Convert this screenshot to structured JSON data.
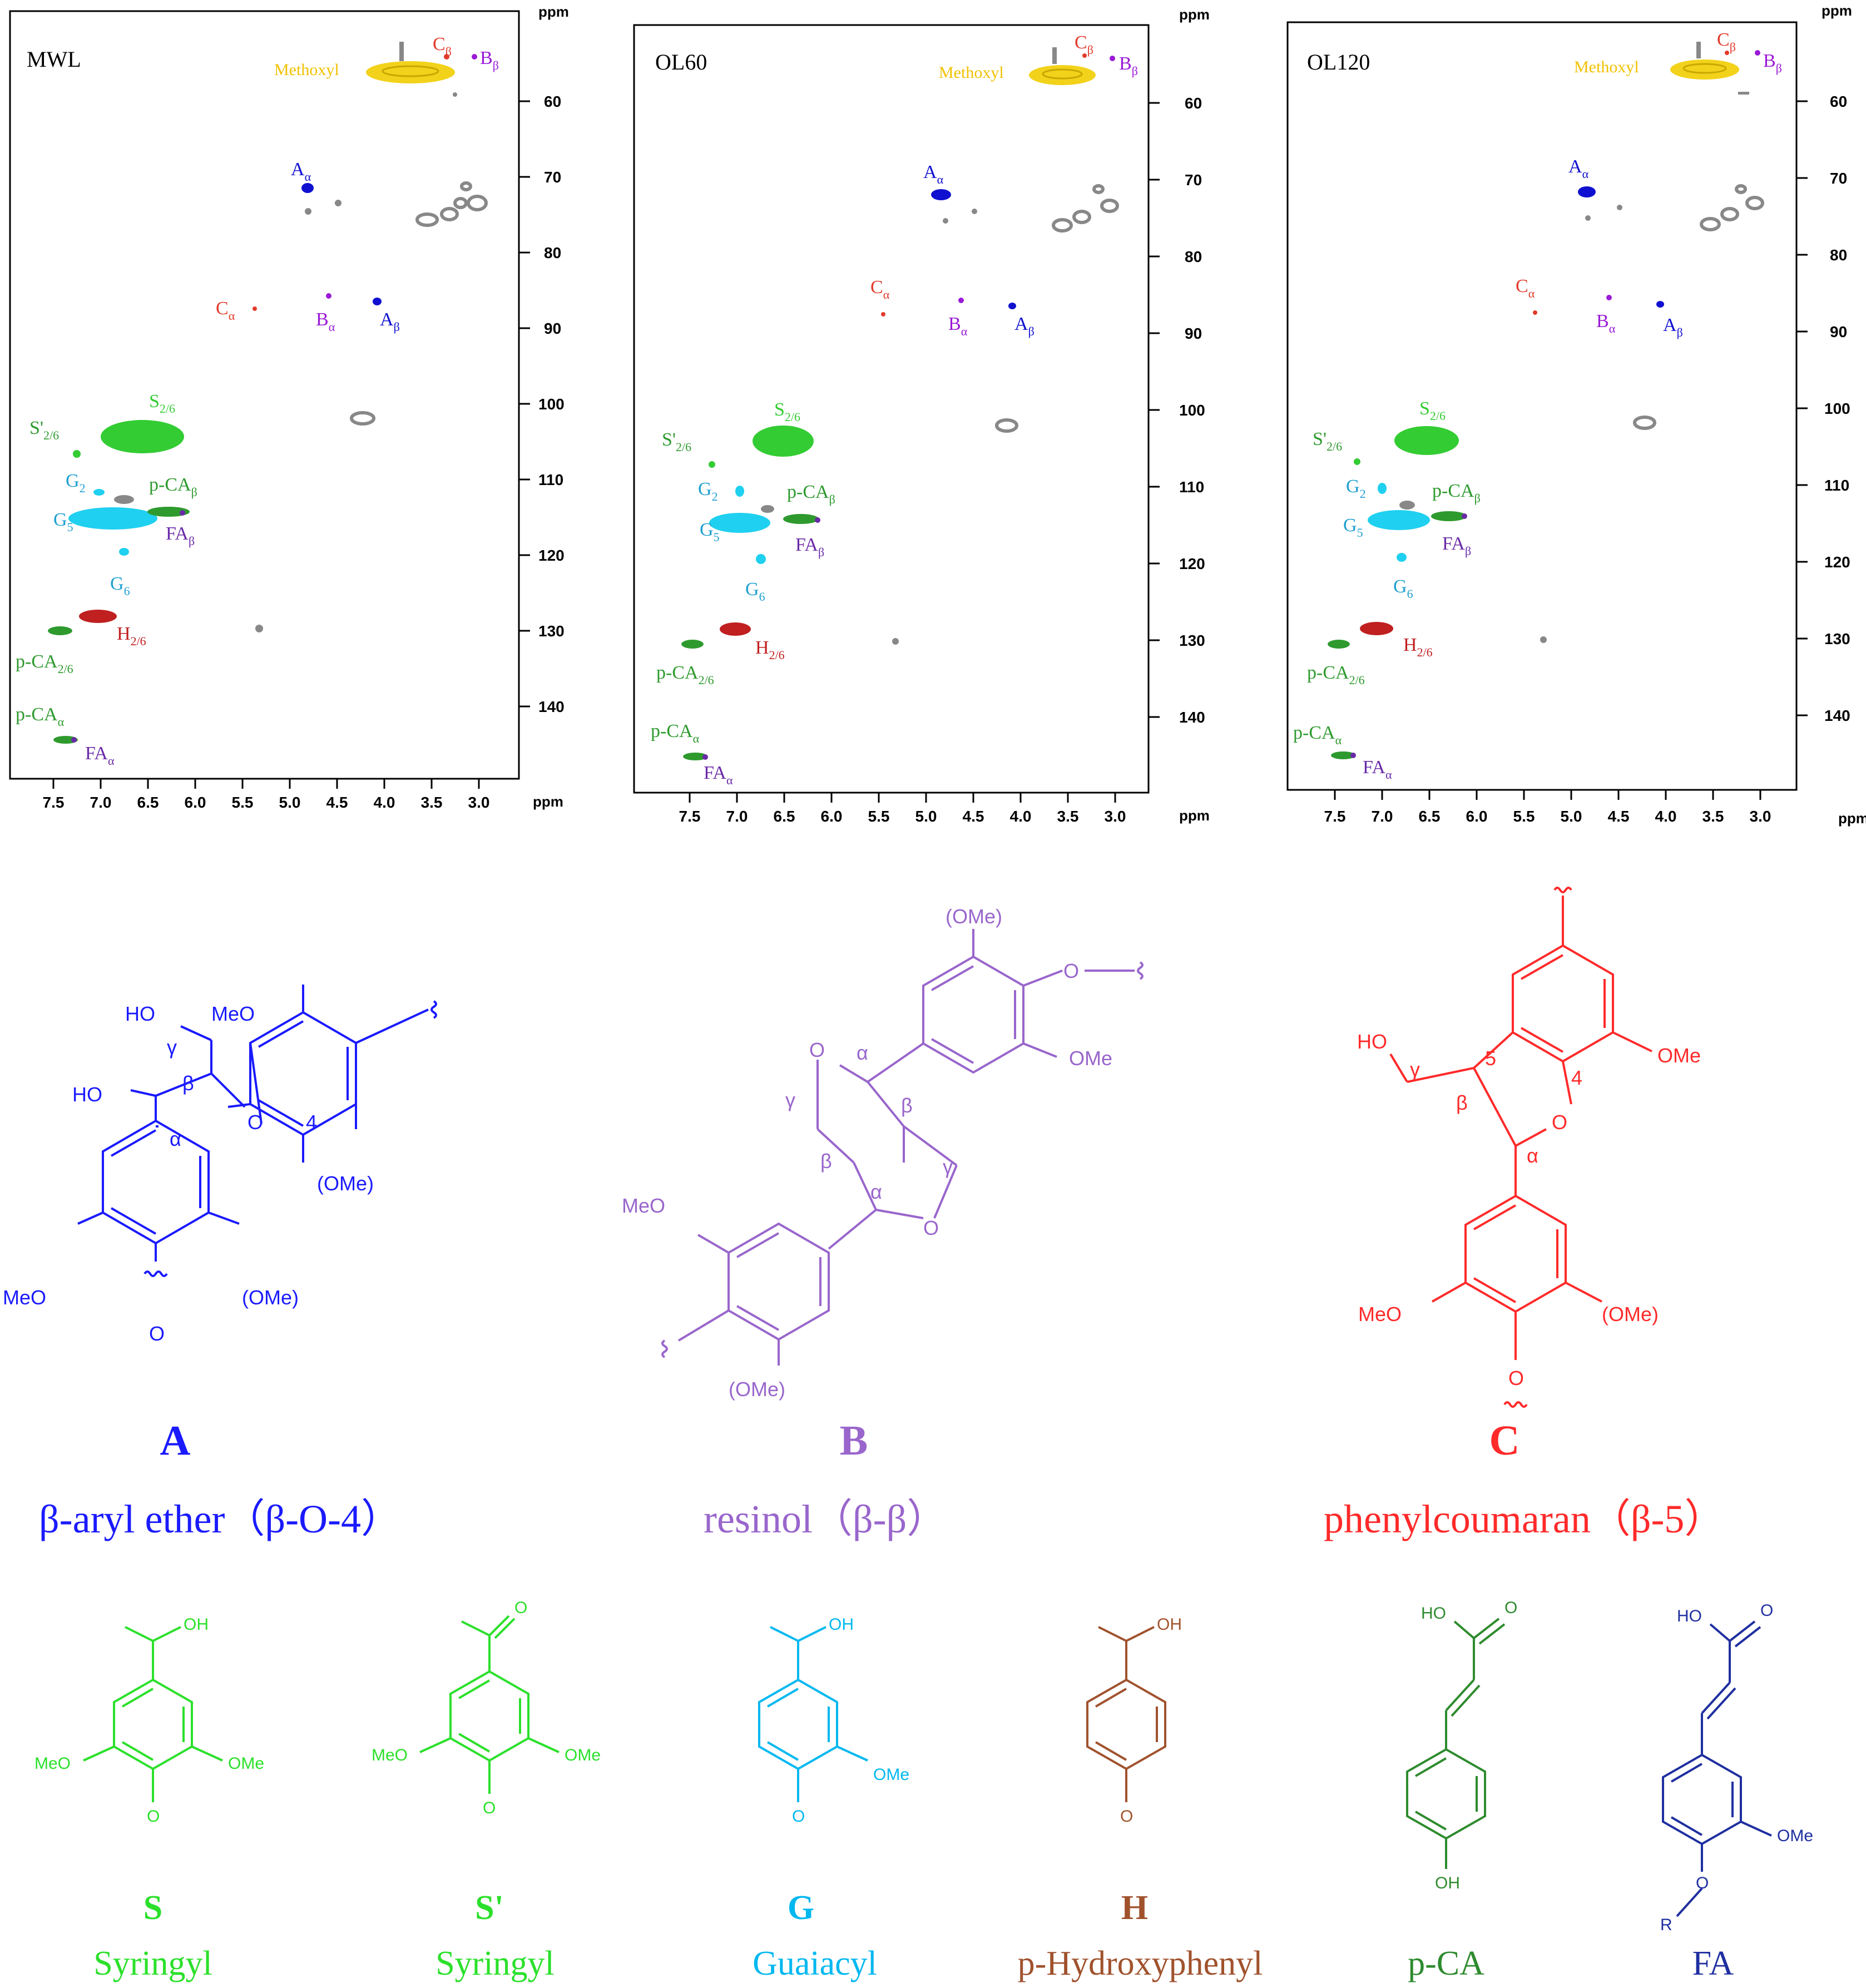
{
  "spectra": [
    {
      "id": "mwl",
      "title": "MWL",
      "axis": {
        "x_ticks": [
          "7.5",
          "7.0",
          "6.5",
          "6.0",
          "5.5",
          "5.0",
          "4.5",
          "4.0",
          "3.5",
          "3.0"
        ],
        "y_ticks": [
          "60",
          "70",
          "80",
          "90",
          "100",
          "110",
          "120",
          "130",
          "140"
        ],
        "unit": "ppm"
      },
      "labels": {
        "methoxyl": "Methoxyl",
        "c_beta": "C",
        "b_beta": "B",
        "a_alpha": "A",
        "c_alpha": "C",
        "b_alpha": "B",
        "a_beta": "A",
        "s26": "S",
        "s26p": "S'",
        "g2": "G",
        "pca_beta": "p-CA",
        "g5": "G",
        "fa_beta": "FA",
        "g6": "G",
        "h26": "H",
        "pca26": "p-CA",
        "pca_alpha": "p-CA",
        "fa_alpha": "FA"
      },
      "subs": {
        "alpha": "α",
        "beta": "β",
        "two_six": "2/6",
        "two": "2",
        "five": "5",
        "six": "6"
      }
    },
    {
      "id": "ol60",
      "title": "OL60",
      "axis": {
        "x_ticks": [
          "7.5",
          "7.0",
          "6.5",
          "6.0",
          "5.5",
          "5.0",
          "4.5",
          "4.0",
          "3.5",
          "3.0"
        ],
        "y_ticks": [
          "60",
          "70",
          "80",
          "90",
          "100",
          "110",
          "120",
          "130",
          "140"
        ],
        "unit": "ppm"
      },
      "labels": {
        "methoxyl": "Methoxyl",
        "c_beta": "C",
        "b_beta": "B",
        "a_alpha": "A",
        "c_alpha": "C",
        "b_alpha": "B",
        "a_beta": "A",
        "s26": "S",
        "s26p": "S'",
        "g2": "G",
        "pca_beta": "p-CA",
        "g5": "G",
        "fa_beta": "FA",
        "g6": "G",
        "h26": "H",
        "pca26": "p-CA",
        "pca_alpha": "p-CA",
        "fa_alpha": "FA"
      },
      "subs": {
        "alpha": "α",
        "beta": "β",
        "two_six": "2/6",
        "two": "2",
        "five": "5",
        "six": "6"
      }
    },
    {
      "id": "ol120",
      "title": "OL120",
      "axis": {
        "x_ticks": [
          "7.5",
          "7.0",
          "6.5",
          "6.0",
          "5.5",
          "5.0",
          "4.5",
          "4.0",
          "3.5",
          "3.0"
        ],
        "y_ticks": [
          "60",
          "70",
          "80",
          "90",
          "100",
          "110",
          "120",
          "130",
          "140"
        ],
        "unit": "ppm"
      },
      "labels": {
        "methoxyl": "Methoxyl",
        "c_beta": "C",
        "b_beta": "B",
        "a_alpha": "A",
        "c_alpha": "C",
        "b_alpha": "B",
        "a_beta": "A",
        "s26": "S",
        "s26p": "S'",
        "g2": "G",
        "pca_beta": "p-CA",
        "g5": "G",
        "fa_beta": "FA",
        "g6": "G",
        "h26": "H",
        "pca26": "p-CA",
        "pca_alpha": "p-CA",
        "fa_alpha": "FA"
      },
      "subs": {
        "alpha": "α",
        "beta": "β",
        "two_six": "2/6",
        "two": "2",
        "five": "5",
        "six": "6"
      }
    }
  ],
  "structures": {
    "A": {
      "letter": "A",
      "name": "β-aryl ether（β-O-4）",
      "color": "#1a1aff",
      "atoms": {
        "ho_top": "HO",
        "ho_left": "HO",
        "meo_top": "MeO",
        "meo_left": "MeO",
        "ome_paren": "(OMe)",
        "ome_right": "(OMe)",
        "o": "O",
        "o_bottom": "O",
        "gamma": "γ",
        "beta": "β",
        "alpha": "α",
        "four": "4"
      }
    },
    "B": {
      "letter": "B",
      "name": "resinol（β-β）",
      "color": "#9966cc",
      "atoms": {
        "ome_top": "(OMe)",
        "o_right": "O",
        "ome_right": "OMe",
        "o_ring1": "O",
        "o_ring2": "O",
        "meo": "MeO",
        "ome_bottom": "(OMe)",
        "alpha": "α",
        "beta": "β",
        "gamma": "γ"
      }
    },
    "C": {
      "letter": "C",
      "name": "phenylcoumaran（β-5）",
      "color": "#ff2a2a",
      "atoms": {
        "ho": "HO",
        "gamma": "γ",
        "beta": "β",
        "alpha": "α",
        "five": "5",
        "four": "4",
        "o_ring": "O",
        "ome": "OMe",
        "meo": "MeO",
        "ome_paren": "(OMe)",
        "o_bottom": "O"
      }
    }
  },
  "units": [
    {
      "letter": "S",
      "name": "Syringyl",
      "color": "#2be02b",
      "atoms": {
        "oh": "OH",
        "meo": "MeO",
        "ome": "OMe",
        "o": "O"
      }
    },
    {
      "letter": "S'",
      "name": "Syringyl",
      "color": "#2be02b",
      "atoms": {
        "o_top": "O",
        "meo": "MeO",
        "ome": "OMe",
        "o": "O"
      }
    },
    {
      "letter": "G",
      "name": "Guaiacyl",
      "color": "#00b8f0",
      "atoms": {
        "oh": "OH",
        "ome": "OMe",
        "o": "O"
      }
    },
    {
      "letter": "H",
      "name": "p-Hydroxyphenyl",
      "color": "#a0522d",
      "atoms": {
        "oh": "OH",
        "o": "O"
      }
    },
    {
      "letter": "",
      "name": "p-CA",
      "color": "#2e8b2e",
      "atoms": {
        "ho": "HO",
        "o": "O",
        "oh": "OH"
      }
    },
    {
      "letter": "",
      "name": "FA",
      "color": "#1f2fa0",
      "atoms": {
        "ho": "HO",
        "o": "O",
        "ome": "OMe",
        "o2": "O",
        "r": "R"
      }
    }
  ],
  "colors": {
    "methoxyl": "#f2d21a",
    "gray": "#888888",
    "blue": "#1010d0",
    "purple": "#9a1ad6",
    "red": "#e23a2a",
    "green": "#33cc33",
    "cyan": "#1fd0f0",
    "darkred": "#c02020",
    "darkgreen": "#2e9a2e",
    "violet": "#6a2aa8"
  }
}
